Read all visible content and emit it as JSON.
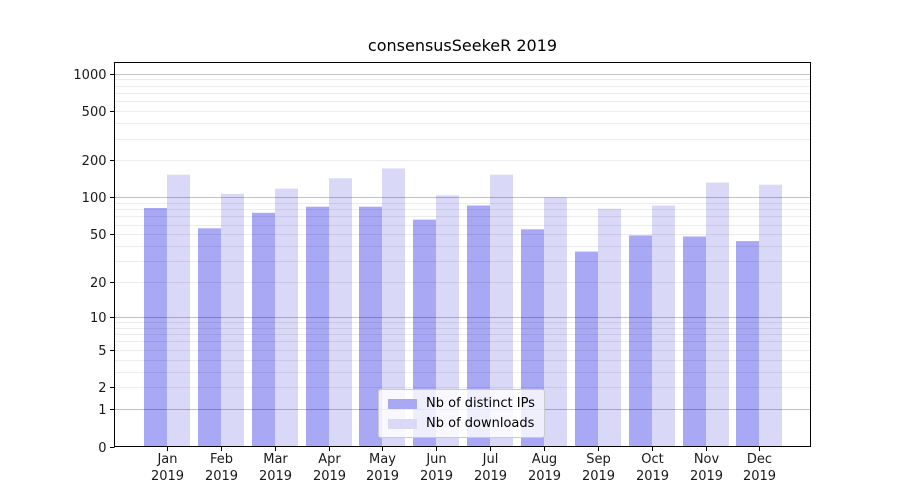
{
  "chart_data": {
    "type": "bar",
    "title": "consensusSeekeR 2019",
    "categories": [
      "Jan 2019",
      "Feb 2019",
      "Mar 2019",
      "Apr 2019",
      "May 2019",
      "Jun 2019",
      "Jul 2019",
      "Aug 2019",
      "Sep 2019",
      "Oct 2019",
      "Nov 2019",
      "Dec 2019"
    ],
    "series": [
      {
        "name": "Nb of distinct IPs",
        "color": "#a8a8f5",
        "values": [
          82,
          56,
          75,
          84,
          84,
          66,
          86,
          55,
          36,
          49,
          48,
          44
        ]
      },
      {
        "name": "Nb of downloads",
        "color": "#d9d9f7",
        "values": [
          153,
          107,
          118,
          143,
          172,
          104,
          153,
          100,
          81,
          86,
          132,
          127
        ]
      }
    ],
    "xlabel": "",
    "ylabel": "",
    "yscale": "log1p",
    "ylim": [
      0,
      1230
    ],
    "yticks": [
      0,
      1,
      2,
      5,
      10,
      20,
      50,
      100,
      200,
      500,
      1000
    ],
    "grid": {
      "on": true,
      "major_at": [
        1,
        10,
        100,
        1000
      ],
      "major_color": "rgba(0,0,0,0.24)",
      "minor_color": "rgba(0,0,0,0.075)"
    },
    "legend_position": "lower center",
    "text_color": "#1a1a1a",
    "spine_color": "#000000"
  }
}
